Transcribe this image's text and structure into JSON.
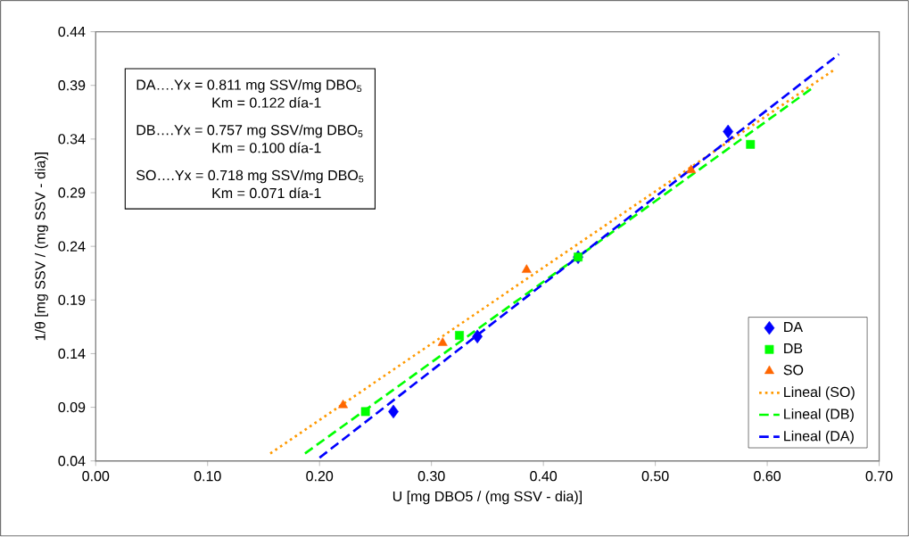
{
  "chart_data": {
    "type": "scatter",
    "xlabel": "U [mg DBO5 / (mg SSV - dia)]",
    "ylabel": "1/θ [mg SSV / (mg SSV - dia)]",
    "xlim": [
      0,
      0.7
    ],
    "xticks": [
      {
        "value": 0,
        "label": "0.00"
      },
      {
        "value": 0.1,
        "label": "0.10"
      },
      {
        "value": 0.2,
        "label": "0.20"
      },
      {
        "value": 0.3,
        "label": "0.30"
      },
      {
        "value": 0.4,
        "label": "0.40"
      },
      {
        "value": 0.5,
        "label": "0.50"
      },
      {
        "value": 0.6,
        "label": "0.60"
      },
      {
        "value": 0.7,
        "label": "0.70"
      }
    ],
    "ylim": [
      0.04,
      0.44
    ],
    "yticks": [
      0.04,
      0.09,
      0.14,
      0.19,
      0.24,
      0.29,
      0.34,
      0.39,
      0.44
    ],
    "grid": false,
    "legend": "bottom right",
    "annotations": [
      "DA….Yx = 0.811 mg SSV/mg DBO$_{5}$",
      "Km = 0.122 día-1",
      "DB….Yx = 0.757 mg SSV/mg DBO$_{5}$",
      "Km = 0.100 día-1",
      "SO….Yx = 0.718 mg SSV/mg DBO$_{5}$",
      "Km = 0.071 día-1"
    ],
    "series": [
      {
        "name": "DA",
        "marker": "diamond",
        "color": "#0000ff",
        "x": [
          0.266,
          0.341,
          0.431,
          0.565
        ],
        "values": [
          0.086,
          0.156,
          0.23,
          0.347
        ]
      },
      {
        "name": "DB",
        "marker": "square",
        "color": "#00ff00",
        "x": [
          0.241,
          0.325,
          0.431,
          0.585
        ],
        "values": [
          0.086,
          0.157,
          0.23,
          0.335
        ]
      },
      {
        "name": "SO",
        "marker": "triangle",
        "color": "#ff6600",
        "x": [
          0.221,
          0.31,
          0.385,
          0.532
        ],
        "values": [
          0.092,
          0.15,
          0.218,
          0.311
        ]
      },
      {
        "name": "Lineal (SO)",
        "type": "line",
        "marker": "none",
        "line_style": "dotted",
        "color": "#ff9900",
        "x": [
          0.156,
          0.659
        ],
        "values": [
          0.047,
          0.404
        ]
      },
      {
        "name": "Lineal (DB)",
        "type": "line",
        "marker": "none",
        "line_style": "dashed",
        "color": "#00ff00",
        "x": [
          0.187,
          0.641
        ],
        "values": [
          0.047,
          0.388
        ]
      },
      {
        "name": "Lineal (DA)",
        "type": "line",
        "marker": "none",
        "line_style": "dashed",
        "color": "#0000ff",
        "x": [
          0.2,
          0.664
        ],
        "values": [
          0.043,
          0.419
        ]
      }
    ]
  }
}
